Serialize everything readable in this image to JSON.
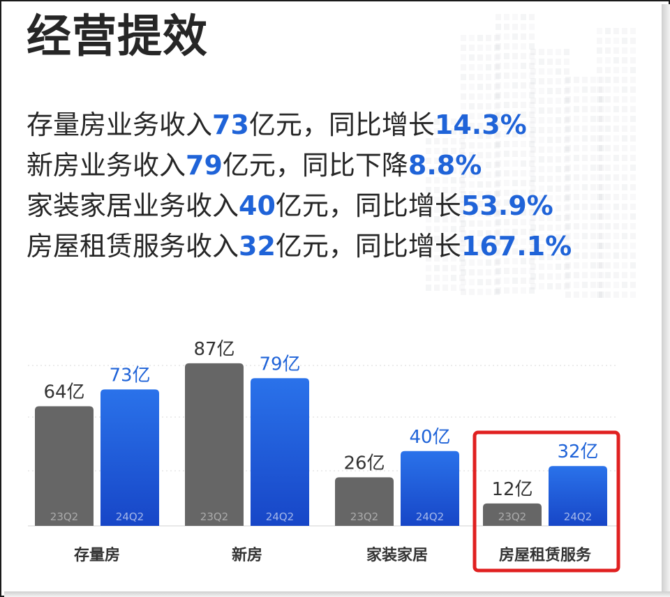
{
  "title": "经营提效",
  "stats": [
    {
      "pre": "存量房业务收入",
      "value": "73",
      "mid": "亿元，同比增长",
      "rate": "14.3%"
    },
    {
      "pre": "新房业务收入",
      "value": "79",
      "mid": "亿元，同比下降",
      "rate": "8.8%"
    },
    {
      "pre": "家装家居业务收入",
      "value": "40",
      "mid": "亿元，同比增长",
      "rate": "53.9%"
    },
    {
      "pre": "房屋租赁服务收入",
      "value": "32",
      "mid": "亿元，同比增长",
      "rate": "167.1%"
    }
  ],
  "colors": {
    "series_2023": "#666666",
    "series_2024": "#1f63d8",
    "highlight": "#e02020",
    "text": "#262626"
  },
  "chart_data": {
    "type": "bar",
    "categories": [
      "存量房",
      "新房",
      "家装家居",
      "房屋租赁服务"
    ],
    "series": [
      {
        "name": "23Q2",
        "values": [
          64,
          87,
          26,
          12
        ],
        "labels": [
          "64亿",
          "87亿",
          "26亿",
          "12亿"
        ]
      },
      {
        "name": "24Q2",
        "values": [
          73,
          79,
          40,
          32
        ],
        "labels": [
          "73亿",
          "79亿",
          "40亿",
          "32亿"
        ]
      }
    ],
    "highlight_category": "房屋租赁服务",
    "grid": true,
    "legend": "none"
  }
}
